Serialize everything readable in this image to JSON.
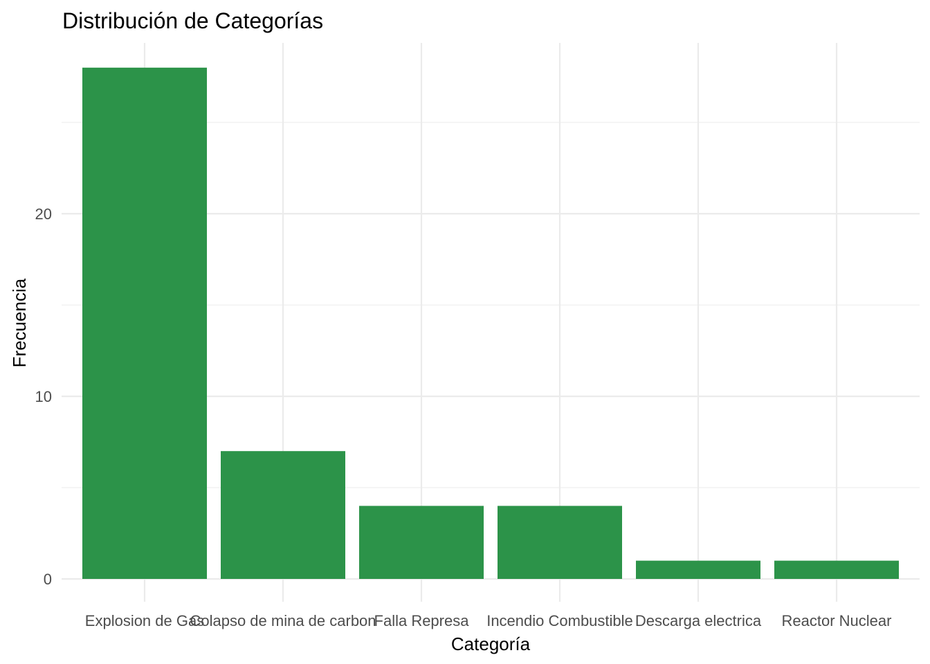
{
  "chart_data": {
    "type": "bar",
    "title": "Distribución de Categorías",
    "xlabel": "Categoría",
    "ylabel": "Frecuencia",
    "categories": [
      "Explosion de Gas",
      "Colapso de mina de carbon",
      "Falla Represa",
      "Incendio Combustible",
      "Descarga electrica",
      "Reactor Nuclear"
    ],
    "values": [
      28,
      7,
      4,
      4,
      1,
      1
    ],
    "ylim": [
      0,
      29.4
    ],
    "yticks": [
      0,
      10,
      20
    ],
    "ytick_labels": [
      "0",
      "10",
      "20"
    ],
    "grid": true,
    "bar_color": "#2c9349",
    "grid_color": "#ebebeb"
  }
}
